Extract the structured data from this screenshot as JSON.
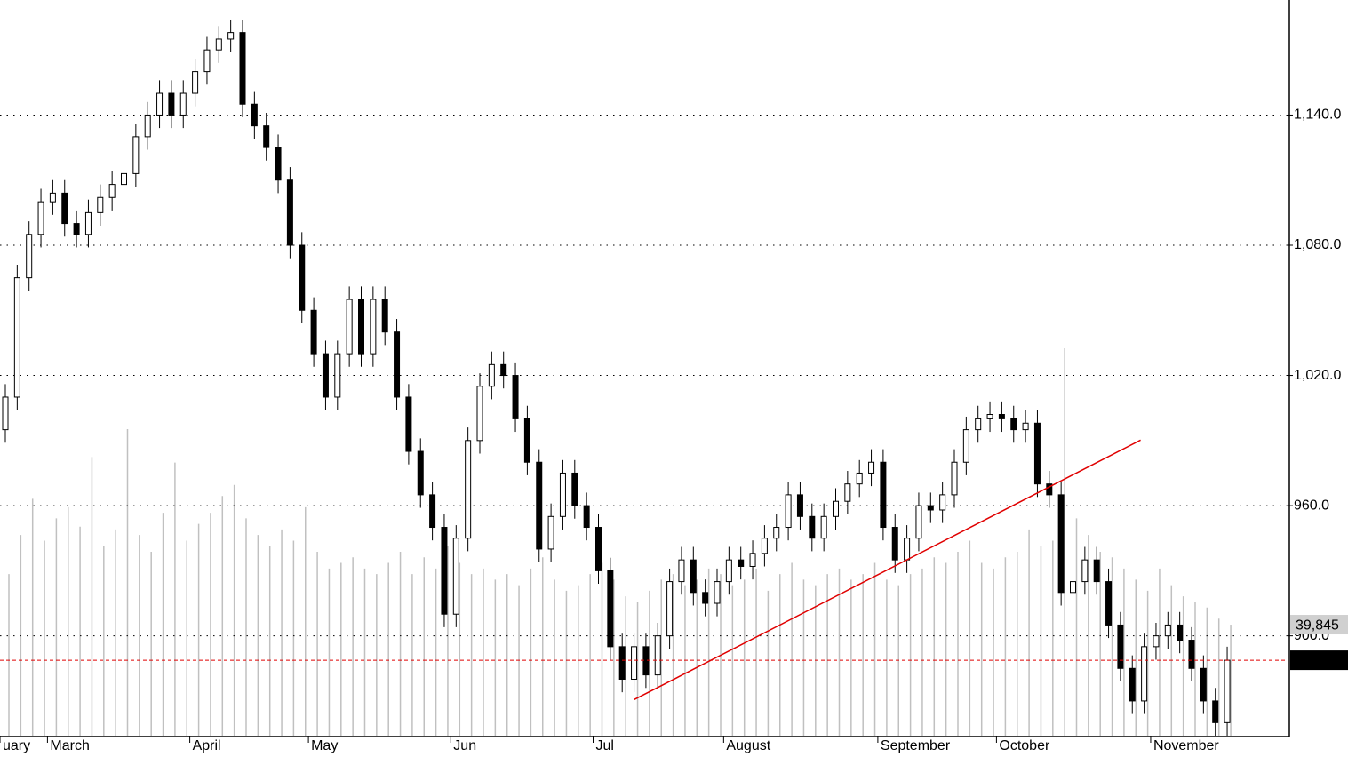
{
  "chart_data": {
    "type": "candlestick",
    "categories": [
      "uary",
      null,
      null,
      null,
      "March",
      null,
      null,
      null,
      null,
      null,
      null,
      null,
      null,
      null,
      null,
      null,
      "April",
      null,
      null,
      null,
      null,
      null,
      null,
      null,
      null,
      null,
      "May",
      null,
      null,
      null,
      null,
      null,
      null,
      null,
      null,
      null,
      null,
      null,
      "Jun",
      null,
      null,
      null,
      null,
      null,
      null,
      null,
      null,
      null,
      null,
      null,
      "Jul",
      null,
      null,
      null,
      null,
      null,
      null,
      null,
      null,
      null,
      null,
      "August",
      null,
      null,
      null,
      null,
      null,
      null,
      null,
      null,
      null,
      null,
      null,
      null,
      "September",
      null,
      null,
      null,
      null,
      null,
      null,
      null,
      null,
      null,
      "October",
      null,
      null,
      null,
      null,
      null,
      null,
      null,
      null,
      null,
      null,
      null,
      null,
      "November",
      null,
      null,
      null,
      null,
      null,
      null
    ],
    "open": [
      995,
      1010,
      1065,
      1085,
      1100,
      1104,
      1090,
      1085,
      1095,
      1102,
      1108,
      1113,
      1130,
      1140,
      1150,
      1140,
      1150,
      1160,
      1170,
      1175,
      1178,
      1145,
      1135,
      1125,
      1110,
      1080,
      1050,
      1030,
      1010,
      1030,
      1055,
      1030,
      1055,
      1040,
      1010,
      985,
      965,
      950,
      910,
      945,
      990,
      1015,
      1025,
      1020,
      1000,
      980,
      940,
      955,
      975,
      960,
      950,
      930,
      895,
      880,
      895,
      882,
      900,
      925,
      935,
      920,
      915,
      925,
      935,
      932,
      938,
      945,
      950,
      965,
      955,
      945,
      955,
      962,
      970,
      975,
      980,
      950,
      935,
      945,
      960,
      958,
      965,
      980,
      995,
      1000,
      1002,
      1000,
      995,
      998,
      970,
      965,
      920,
      925,
      935,
      925,
      905,
      885,
      870,
      895,
      900,
      905,
      898,
      885,
      870,
      860
    ],
    "high": [
      1016,
      1071,
      1091,
      1106,
      1110,
      1110,
      1096,
      1101,
      1108,
      1114,
      1119,
      1136,
      1146,
      1156,
      1156,
      1156,
      1166,
      1176,
      1181,
      1184,
      1184,
      1151,
      1141,
      1131,
      1116,
      1086,
      1056,
      1036,
      1036,
      1061,
      1061,
      1061,
      1061,
      1046,
      1016,
      991,
      971,
      956,
      951,
      996,
      1021,
      1031,
      1031,
      1026,
      1006,
      986,
      961,
      981,
      981,
      966,
      956,
      936,
      901,
      901,
      901,
      906,
      931,
      941,
      941,
      926,
      931,
      941,
      941,
      944,
      951,
      956,
      971,
      971,
      961,
      961,
      968,
      976,
      981,
      986,
      986,
      956,
      951,
      966,
      966,
      971,
      986,
      1001,
      1006,
      1008,
      1008,
      1006,
      1004,
      1004,
      976,
      971,
      931,
      941,
      941,
      931,
      911,
      891,
      901,
      906,
      911,
      911,
      904,
      891,
      876,
      895
    ],
    "low": [
      989,
      1004,
      1059,
      1079,
      1094,
      1084,
      1079,
      1079,
      1089,
      1096,
      1102,
      1107,
      1124,
      1134,
      1134,
      1134,
      1144,
      1154,
      1164,
      1169,
      1139,
      1129,
      1119,
      1104,
      1074,
      1044,
      1024,
      1004,
      1004,
      1024,
      1024,
      1024,
      1034,
      1004,
      979,
      959,
      944,
      904,
      904,
      939,
      984,
      1009,
      1014,
      994,
      974,
      934,
      934,
      949,
      954,
      944,
      924,
      889,
      874,
      874,
      876,
      876,
      894,
      919,
      914,
      909,
      909,
      919,
      926,
      926,
      932,
      939,
      944,
      949,
      939,
      939,
      949,
      956,
      964,
      969,
      944,
      929,
      929,
      939,
      952,
      952,
      959,
      974,
      989,
      994,
      994,
      989,
      989,
      964,
      959,
      914,
      914,
      919,
      919,
      899,
      879,
      864,
      864,
      889,
      894,
      892,
      879,
      864,
      854,
      854
    ],
    "close": [
      1010,
      1065,
      1085,
      1100,
      1104,
      1090,
      1085,
      1095,
      1102,
      1108,
      1113,
      1130,
      1140,
      1150,
      1140,
      1150,
      1160,
      1170,
      1175,
      1178,
      1145,
      1135,
      1125,
      1110,
      1080,
      1050,
      1030,
      1010,
      1030,
      1055,
      1030,
      1055,
      1040,
      1010,
      985,
      965,
      950,
      910,
      945,
      990,
      1015,
      1025,
      1020,
      1000,
      980,
      940,
      955,
      975,
      960,
      950,
      930,
      895,
      880,
      895,
      882,
      900,
      925,
      935,
      920,
      915,
      925,
      935,
      932,
      938,
      945,
      950,
      965,
      955,
      945,
      955,
      962,
      970,
      975,
      980,
      950,
      935,
      945,
      960,
      958,
      965,
      980,
      995,
      1000,
      1002,
      1000,
      995,
      998,
      970,
      965,
      920,
      925,
      935,
      925,
      905,
      885,
      870,
      895,
      900,
      905,
      898,
      885,
      870,
      860,
      888.76
    ],
    "volume": [
      58000,
      72000,
      85000,
      70000,
      78000,
      82000,
      75000,
      100000,
      68000,
      74000,
      110000,
      72000,
      66000,
      80000,
      98000,
      70000,
      76000,
      80000,
      86000,
      90000,
      78000,
      72000,
      68000,
      74000,
      70000,
      82000,
      66000,
      60000,
      62000,
      64000,
      60000,
      58000,
      62000,
      66000,
      58000,
      64000,
      60000,
      68000,
      62000,
      58000,
      60000,
      56000,
      58000,
      54000,
      60000,
      64000,
      56000,
      52000,
      54000,
      58000,
      62000,
      56000,
      50000,
      48000,
      52000,
      56000,
      58000,
      54000,
      56000,
      60000,
      58000,
      54000,
      56000,
      60000,
      52000,
      58000,
      62000,
      56000,
      54000,
      58000,
      60000,
      56000,
      58000,
      62000,
      56000,
      54000,
      58000,
      60000,
      64000,
      62000,
      66000,
      70000,
      62000,
      60000,
      64000,
      66000,
      74000,
      68000,
      70000,
      139000,
      78000,
      72000,
      66000,
      64000,
      60000,
      56000,
      52000,
      60000,
      54000,
      50000,
      48000,
      46000,
      42000,
      39845
    ],
    "volume_last_label": "39,845",
    "vlim": [
      0,
      264000
    ],
    "ylim": [
      854,
      1193
    ],
    "yticks": [
      {
        "value": 900,
        "label": "900.0"
      },
      {
        "value": 960,
        "label": "960.0"
      },
      {
        "value": 1020,
        "label": "1,020.0"
      },
      {
        "value": 1080,
        "label": "1,080.0"
      },
      {
        "value": 1140,
        "label": "1,140.0"
      }
    ],
    "grid": true,
    "up_color": "#ffffff",
    "down_color": "#000000",
    "volume_color": "#c0c0c0",
    "last_price_color": "#e00000",
    "trendline": {
      "x": [
        53,
        95.7
      ],
      "y": [
        870.6,
        990.2
      ],
      "color": "#e00000"
    }
  }
}
